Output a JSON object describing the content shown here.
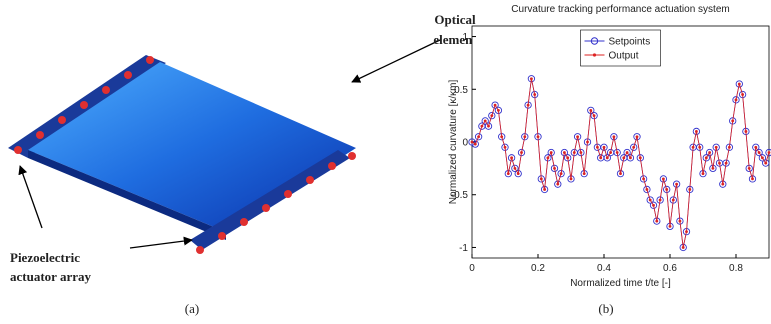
{
  "figure": {
    "panel_a": {
      "optical_label": [
        "Optical",
        "element"
      ],
      "piezo_label": [
        "Piezoelectric",
        "actuator array"
      ],
      "caption": "(a)"
    },
    "panel_b": {
      "caption": "(b)"
    }
  },
  "chart_data": {
    "type": "line",
    "title": "Curvature tracking performance actuation system",
    "xlabel": "Normalized time t/te [-]",
    "ylabel": "Normalized curvature [κ/κm]",
    "xlim": [
      0,
      0.9
    ],
    "xticks": [
      0,
      0.2,
      0.4,
      0.6,
      0.8
    ],
    "ylim": [
      -1.1,
      1.1
    ],
    "yticks": [
      -1,
      -0.5,
      0,
      0.5,
      1
    ],
    "legend": "upper center",
    "x": [
      0,
      0.01,
      0.02,
      0.03,
      0.04,
      0.05,
      0.06,
      0.07,
      0.08,
      0.09,
      0.1,
      0.11,
      0.12,
      0.13,
      0.14,
      0.15,
      0.16,
      0.17,
      0.18,
      0.19,
      0.2,
      0.21,
      0.22,
      0.23,
      0.24,
      0.25,
      0.26,
      0.27,
      0.28,
      0.29,
      0.3,
      0.31,
      0.32,
      0.33,
      0.34,
      0.35,
      0.36,
      0.37,
      0.38,
      0.39,
      0.4,
      0.41,
      0.42,
      0.43,
      0.44,
      0.45,
      0.46,
      0.47,
      0.48,
      0.49,
      0.5,
      0.51,
      0.52,
      0.53,
      0.54,
      0.55,
      0.56,
      0.57,
      0.58,
      0.59,
      0.6,
      0.61,
      0.62,
      0.63,
      0.64,
      0.65,
      0.66,
      0.67,
      0.68,
      0.69,
      0.7,
      0.71,
      0.72,
      0.73,
      0.74,
      0.75,
      0.76,
      0.77,
      0.78,
      0.79,
      0.8,
      0.81,
      0.82,
      0.83,
      0.84,
      0.85,
      0.86,
      0.87,
      0.88,
      0.89,
      0.9
    ],
    "series": [
      {
        "name": "Setpoints",
        "color": "#3333cc",
        "marker": "circle",
        "values": [
          0,
          -0.02,
          0.05,
          0.15,
          0.2,
          0.15,
          0.25,
          0.35,
          0.3,
          0.05,
          -0.05,
          -0.3,
          -0.15,
          -0.25,
          -0.3,
          -0.1,
          0.05,
          0.35,
          0.6,
          0.45,
          0.05,
          -0.35,
          -0.45,
          -0.15,
          -0.1,
          -0.25,
          -0.4,
          -0.3,
          -0.1,
          -0.15,
          -0.35,
          -0.1,
          0.05,
          -0.1,
          -0.3,
          0,
          0.3,
          0.25,
          -0.05,
          -0.15,
          -0.05,
          -0.15,
          -0.1,
          0.05,
          -0.1,
          -0.3,
          -0.15,
          -0.1,
          -0.15,
          -0.05,
          0.05,
          -0.15,
          -0.35,
          -0.45,
          -0.55,
          -0.6,
          -0.75,
          -0.55,
          -0.35,
          -0.45,
          -0.8,
          -0.55,
          -0.4,
          -0.75,
          -1,
          -0.85,
          -0.45,
          -0.05,
          0.1,
          -0.05,
          -0.3,
          -0.15,
          -0.1,
          -0.25,
          -0.05,
          -0.2,
          -0.4,
          -0.2,
          -0.05,
          0.2,
          0.4,
          0.55,
          0.45,
          0.1,
          -0.25,
          -0.35,
          -0.05,
          -0.1,
          -0.15,
          -0.2,
          -0.1
        ]
      },
      {
        "name": "Output",
        "color": "#dd2222",
        "marker": "dot",
        "values": [
          0,
          -0.02,
          0.05,
          0.15,
          0.2,
          0.15,
          0.25,
          0.35,
          0.3,
          0.05,
          -0.05,
          -0.3,
          -0.15,
          -0.25,
          -0.3,
          -0.1,
          0.05,
          0.35,
          0.6,
          0.45,
          0.05,
          -0.35,
          -0.45,
          -0.15,
          -0.1,
          -0.25,
          -0.4,
          -0.3,
          -0.1,
          -0.15,
          -0.35,
          -0.1,
          0.05,
          -0.1,
          -0.3,
          0,
          0.3,
          0.25,
          -0.05,
          -0.15,
          -0.05,
          -0.15,
          -0.1,
          0.05,
          -0.1,
          -0.3,
          -0.15,
          -0.1,
          -0.15,
          -0.05,
          0.05,
          -0.15,
          -0.35,
          -0.45,
          -0.55,
          -0.6,
          -0.75,
          -0.55,
          -0.35,
          -0.45,
          -0.8,
          -0.55,
          -0.4,
          -0.75,
          -1,
          -0.85,
          -0.45,
          -0.05,
          0.1,
          -0.05,
          -0.3,
          -0.15,
          -0.1,
          -0.25,
          -0.05,
          -0.2,
          -0.4,
          -0.2,
          -0.05,
          0.2,
          0.4,
          0.55,
          0.45,
          0.1,
          -0.25,
          -0.35,
          -0.05,
          -0.1,
          -0.15,
          -0.2,
          -0.1
        ]
      }
    ]
  }
}
